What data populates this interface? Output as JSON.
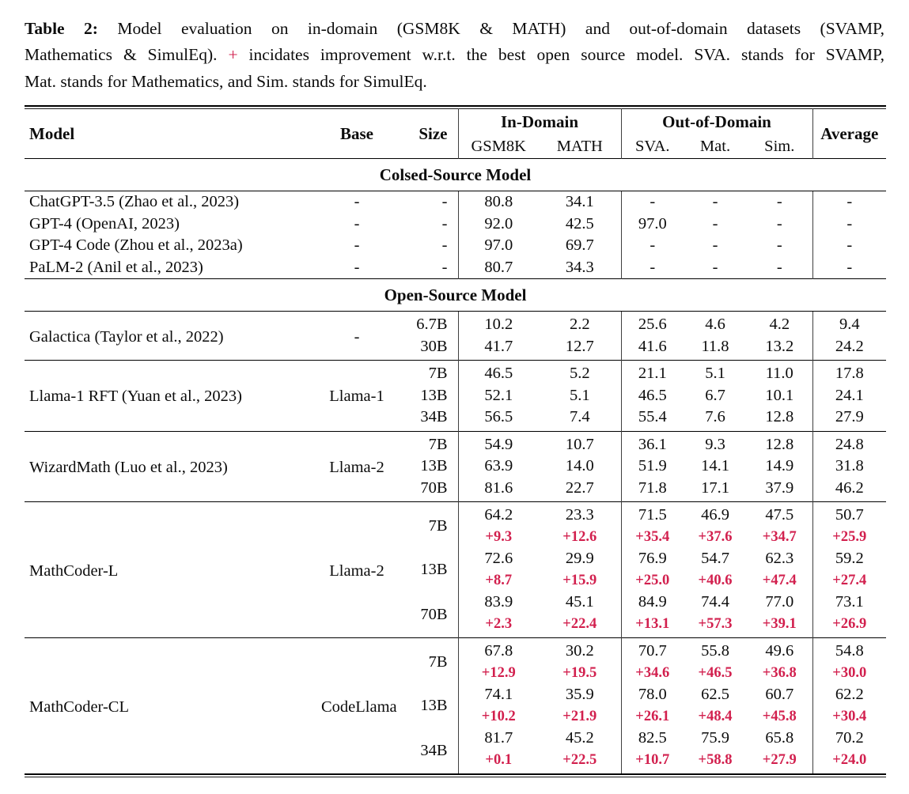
{
  "colors": {
    "delta_red": "#d2204e",
    "rule_black": "#000000"
  },
  "caption": {
    "label": "Table 2:",
    "line1_rest": " Model evaluation on in-domain (GSM8K & MATH) and out-of-domain datasets (SVAMP,",
    "line2_pre": "Mathematics & SimulEq). ",
    "plus_sign": "+",
    "line2_post": " incidates improvement w.r.t. the best open source model. SVA. stands for SVAMP,",
    "line3": "Mat. stands for Mathematics, and Sim. stands for SimulEq."
  },
  "table": {
    "header": {
      "model": "Model",
      "base": "Base",
      "size": "Size",
      "in_domain": "In-Domain",
      "out_of_domain": "Out-of-Domain",
      "average": "Average",
      "sub": [
        "GSM8K",
        "MATH",
        "SVA.",
        "Mat.",
        "Sim."
      ]
    },
    "sections": [
      {
        "title": "Colsed-Source Model",
        "divided": false,
        "groups": [
          {
            "model": "ChatGPT-3.5 (Zhao et al., 2023)",
            "base": "-",
            "sizes": [
              {
                "size": "-",
                "main": [
                  "80.8",
                  "34.1",
                  "-",
                  "-",
                  "-",
                  "-"
                ]
              }
            ]
          },
          {
            "model": "GPT-4 (OpenAI, 2023)",
            "base": "-",
            "sizes": [
              {
                "size": "-",
                "main": [
                  "92.0",
                  "42.5",
                  "97.0",
                  "-",
                  "-",
                  "-"
                ]
              }
            ]
          },
          {
            "model": "GPT-4 Code (Zhou et al., 2023a)",
            "base": "-",
            "sizes": [
              {
                "size": "-",
                "main": [
                  "97.0",
                  "69.7",
                  "-",
                  "-",
                  "-",
                  "-"
                ]
              }
            ]
          },
          {
            "model": "PaLM-2 (Anil et al., 2023)",
            "base": "-",
            "sizes": [
              {
                "size": "-",
                "main": [
                  "80.7",
                  "34.3",
                  "-",
                  "-",
                  "-",
                  "-"
                ]
              }
            ]
          }
        ]
      },
      {
        "title": "Open-Source Model",
        "divided": true,
        "groups": [
          {
            "model": "Galactica (Taylor et al., 2022)",
            "base": "-",
            "sizes": [
              {
                "size": "6.7B",
                "main": [
                  "10.2",
                  "2.2",
                  "25.6",
                  "4.6",
                  "4.2",
                  "9.4"
                ]
              },
              {
                "size": "30B",
                "main": [
                  "41.7",
                  "12.7",
                  "41.6",
                  "11.8",
                  "13.2",
                  "24.2"
                ]
              }
            ]
          },
          {
            "model": "Llama-1 RFT (Yuan et al., 2023)",
            "base": "Llama-1",
            "sizes": [
              {
                "size": "7B",
                "main": [
                  "46.5",
                  "5.2",
                  "21.1",
                  "5.1",
                  "11.0",
                  "17.8"
                ]
              },
              {
                "size": "13B",
                "main": [
                  "52.1",
                  "5.1",
                  "46.5",
                  "6.7",
                  "10.1",
                  "24.1"
                ]
              },
              {
                "size": "34B",
                "main": [
                  "56.5",
                  "7.4",
                  "55.4",
                  "7.6",
                  "12.8",
                  "27.9"
                ]
              }
            ]
          },
          {
            "model": "WizardMath (Luo et al., 2023)",
            "base": "Llama-2",
            "sizes": [
              {
                "size": "7B",
                "main": [
                  "54.9",
                  "10.7",
                  "36.1",
                  "9.3",
                  "12.8",
                  "24.8"
                ]
              },
              {
                "size": "13B",
                "main": [
                  "63.9",
                  "14.0",
                  "51.9",
                  "14.1",
                  "14.9",
                  "31.8"
                ]
              },
              {
                "size": "70B",
                "main": [
                  "81.6",
                  "22.7",
                  "71.8",
                  "17.1",
                  "37.9",
                  "46.2"
                ]
              }
            ]
          },
          {
            "model": "MathCoder-L",
            "base": "Llama-2",
            "sizes": [
              {
                "size": "7B",
                "main": [
                  "64.2",
                  "23.3",
                  "71.5",
                  "46.9",
                  "47.5",
                  "50.7"
                ],
                "delta": [
                  "+9.3",
                  "+12.6",
                  "+35.4",
                  "+37.6",
                  "+34.7",
                  "+25.9"
                ]
              },
              {
                "size": "13B",
                "main": [
                  "72.6",
                  "29.9",
                  "76.9",
                  "54.7",
                  "62.3",
                  "59.2"
                ],
                "delta": [
                  "+8.7",
                  "+15.9",
                  "+25.0",
                  "+40.6",
                  "+47.4",
                  "+27.4"
                ]
              },
              {
                "size": "70B",
                "main": [
                  "83.9",
                  "45.1",
                  "84.9",
                  "74.4",
                  "77.0",
                  "73.1"
                ],
                "delta": [
                  "+2.3",
                  "+22.4",
                  "+13.1",
                  "+57.3",
                  "+39.1",
                  "+26.9"
                ]
              }
            ]
          },
          {
            "model": "MathCoder-CL",
            "base": "CodeLlama",
            "sizes": [
              {
                "size": "7B",
                "main": [
                  "67.8",
                  "30.2",
                  "70.7",
                  "55.8",
                  "49.6",
                  "54.8"
                ],
                "delta": [
                  "+12.9",
                  "+19.5",
                  "+34.6",
                  "+46.5",
                  "+36.8",
                  "+30.0"
                ]
              },
              {
                "size": "13B",
                "main": [
                  "74.1",
                  "35.9",
                  "78.0",
                  "62.5",
                  "60.7",
                  "62.2"
                ],
                "delta": [
                  "+10.2",
                  "+21.9",
                  "+26.1",
                  "+48.4",
                  "+45.8",
                  "+30.4"
                ]
              },
              {
                "size": "34B",
                "main": [
                  "81.7",
                  "45.2",
                  "82.5",
                  "75.9",
                  "65.8",
                  "70.2"
                ],
                "delta": [
                  "+0.1",
                  "+22.5",
                  "+10.7",
                  "+58.8",
                  "+27.9",
                  "+24.0"
                ]
              }
            ]
          }
        ]
      }
    ]
  }
}
